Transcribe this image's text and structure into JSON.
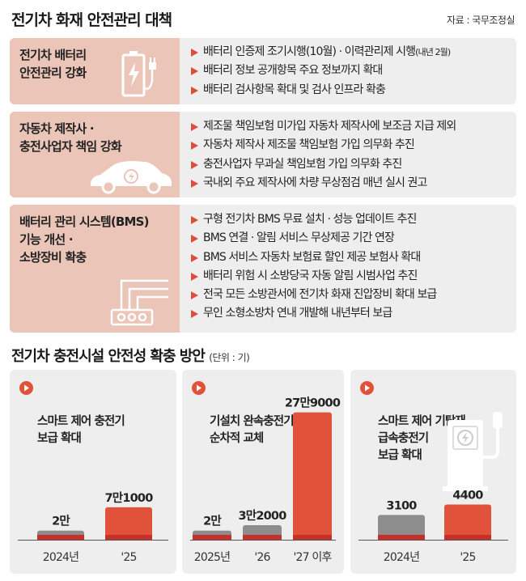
{
  "title": "전기차 화재 안전관리 대책",
  "source": "자료 : 국무조정실",
  "measures": [
    {
      "label": "전기차 배터리\n안전관리 강화",
      "icon": "battery-charging-icon",
      "items": [
        {
          "text": "배터리 인증제 조기시행(10월) · 이력관리제 시행",
          "note": "(내년 2월)"
        },
        {
          "text": "배터리 정보 공개항목 주요 정보까지 확대",
          "note": ""
        },
        {
          "text": "배터리 검사항목 확대 및 검사 인프라 확충",
          "note": ""
        }
      ]
    },
    {
      "label": "자동차 제작사 ·\n충전사업자 책임 강화",
      "icon": "electric-car-icon",
      "items": [
        {
          "text": "제조물 책임보험 미가입 자동차 제작사에 보조금 지급 제외",
          "note": ""
        },
        {
          "text": "자동차 제작사 제조물 책임보험 가입 의무화 추진",
          "note": ""
        },
        {
          "text": "충전사업자 무과실 책임보험 가입 의무화 추진",
          "note": ""
        },
        {
          "text": "국내외 주요 제작사에 차량 무상점검 매년 실시 권고",
          "note": ""
        }
      ]
    },
    {
      "label": "배터리 관리 시스템(BMS)\n기능 개선 ·\n소방장비 확충",
      "icon": "battery-management-system-icon",
      "items": [
        {
          "text": "구형 전기차 BMS 무료 설치 · 성능 업데이트 추진",
          "note": ""
        },
        {
          "text": "BMS 연결 · 알림 서비스 무상제공 기간 연장",
          "note": ""
        },
        {
          "text": "BMS 서비스 자동차 보험료 할인 제공 보험사 확대",
          "note": ""
        },
        {
          "text": "배터리 위험 시 소방당국 자동 알림 시범사업 추진",
          "note": ""
        },
        {
          "text": "전국 모든 소방관서에 전기차 화재 진압장비 확대 보급",
          "note": ""
        },
        {
          "text": "무인 소형소방차 연내 개발해 내년부터 보급",
          "note": ""
        }
      ]
    }
  ],
  "subtitle": "전기차 충전시설 안전성 확충 방안",
  "unit": "(단위 : 기)",
  "colors": {
    "gray": "#8d8d8d",
    "orange": "#e0533a",
    "dark_red": "#c7302a",
    "panel": "#eeeeee",
    "accent_light": "#ebc5b8"
  },
  "chart_data": [
    {
      "type": "bar",
      "title": "스마트 제어 충전기\n보급 확대",
      "categories": [
        "2024년",
        "'25"
      ],
      "values": [
        20000,
        71000
      ],
      "value_labels": [
        "2만",
        "7만1000"
      ],
      "bar_colors": [
        "gray",
        "orange"
      ],
      "ylim": [
        0,
        280000
      ]
    },
    {
      "type": "bar",
      "title": "기설치 완속충전기\n순차적 교체",
      "categories": [
        "2025년",
        "'26",
        "'27 이후"
      ],
      "values": [
        20000,
        32000,
        279000
      ],
      "value_labels": [
        "2만",
        "3만2000",
        "27만9000"
      ],
      "bar_colors": [
        "gray",
        "gray",
        "orange"
      ],
      "ylim": [
        0,
        280000
      ]
    },
    {
      "type": "bar",
      "title": "스마트 제어 기탑재\n급속충전기\n보급 확대",
      "icon": "fast-charger-icon",
      "categories": [
        "2024년",
        "'25"
      ],
      "values": [
        3100,
        4400
      ],
      "value_labels": [
        "3100",
        "4400"
      ],
      "bar_colors": [
        "gray",
        "orange"
      ],
      "ylim": [
        0,
        16000
      ]
    }
  ]
}
